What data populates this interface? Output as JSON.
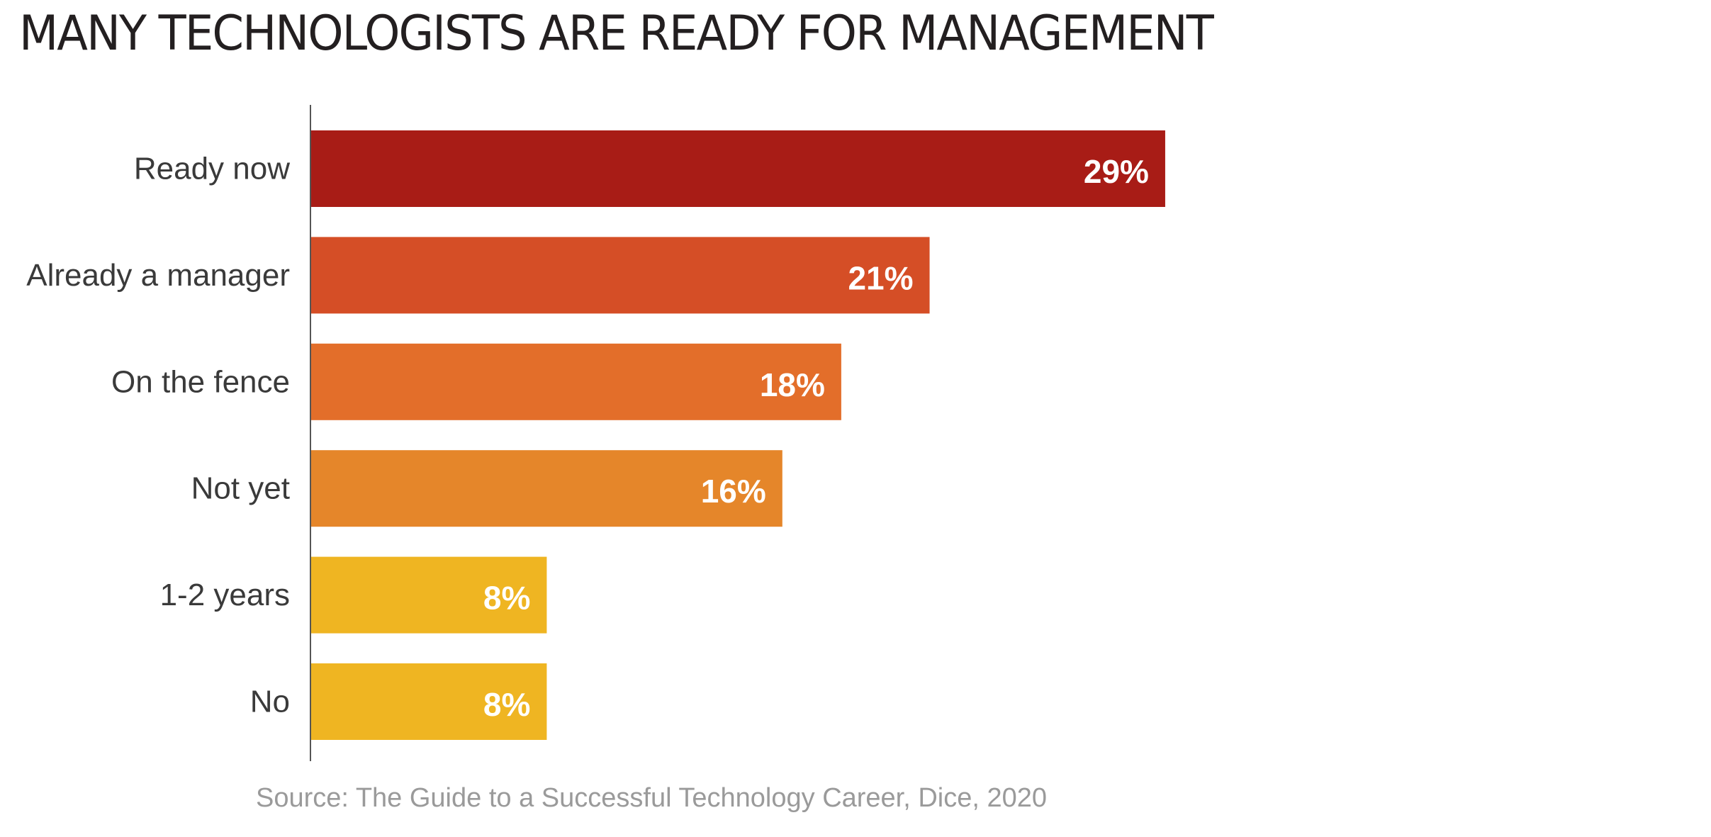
{
  "title": "MANY TECHNOLOGISTS ARE READY FOR MANAGEMENT",
  "source": "Source: The Guide to a Successful Technology Career, Dice, 2020",
  "chart_data": {
    "type": "bar",
    "orientation": "horizontal",
    "title": "MANY TECHNOLOGISTS ARE READY FOR MANAGEMENT",
    "categories": [
      "Ready now",
      "Already a manager",
      "On the fence",
      "Not yet",
      "1-2 years",
      "No"
    ],
    "values": [
      29,
      21,
      18,
      16,
      8,
      8
    ],
    "value_labels": [
      "29%",
      "21%",
      "18%",
      "16%",
      "8%",
      "8%"
    ],
    "colors": [
      "#a81c16",
      "#d54e26",
      "#e36e2a",
      "#e5862a",
      "#efb522",
      "#efb522"
    ],
    "xlim": [
      0,
      55
    ],
    "grid": false,
    "legend": "none"
  }
}
